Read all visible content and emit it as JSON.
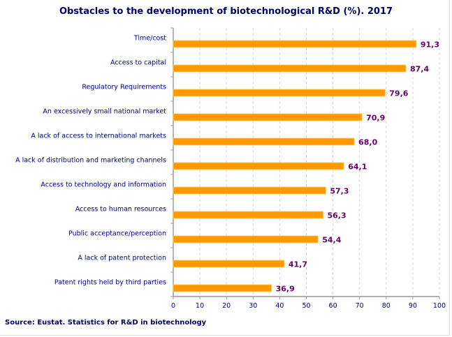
{
  "chart_data": {
    "type": "bar",
    "orientation": "horizontal",
    "title": "Obstacles to the development of biotechnological R&D (%). 2017",
    "source": "Source: Eustat. Statistics for R&D in biotechnology",
    "categories": [
      "Time/cost",
      "Access to capital",
      "Regulatory Requirements",
      "An excessively small national market",
      "A lack of access to international markets",
      "A lack of distribution and marketing channels",
      "Access to technology and information",
      "Access to human resources",
      "Public acceptance/perception",
      "A lack of patent protection",
      "Patent rights held by third parties"
    ],
    "values": [
      91.3,
      87.4,
      79.6,
      70.9,
      68.0,
      64.1,
      57.3,
      56.3,
      54.4,
      41.7,
      36.9
    ],
    "value_labels": [
      "91,3",
      "87,4",
      "79,6",
      "70,9",
      "68,0",
      "64,1",
      "57,3",
      "56,3",
      "54,4",
      "41,7",
      "36,9"
    ],
    "xlim": [
      0,
      100
    ],
    "xticks": [
      0,
      10,
      20,
      30,
      40,
      50,
      60,
      70,
      80,
      90,
      100
    ],
    "grid": "vertical dashed",
    "bar_color": "#FF9900",
    "label_color": "#660066",
    "text_color": "#000080"
  }
}
